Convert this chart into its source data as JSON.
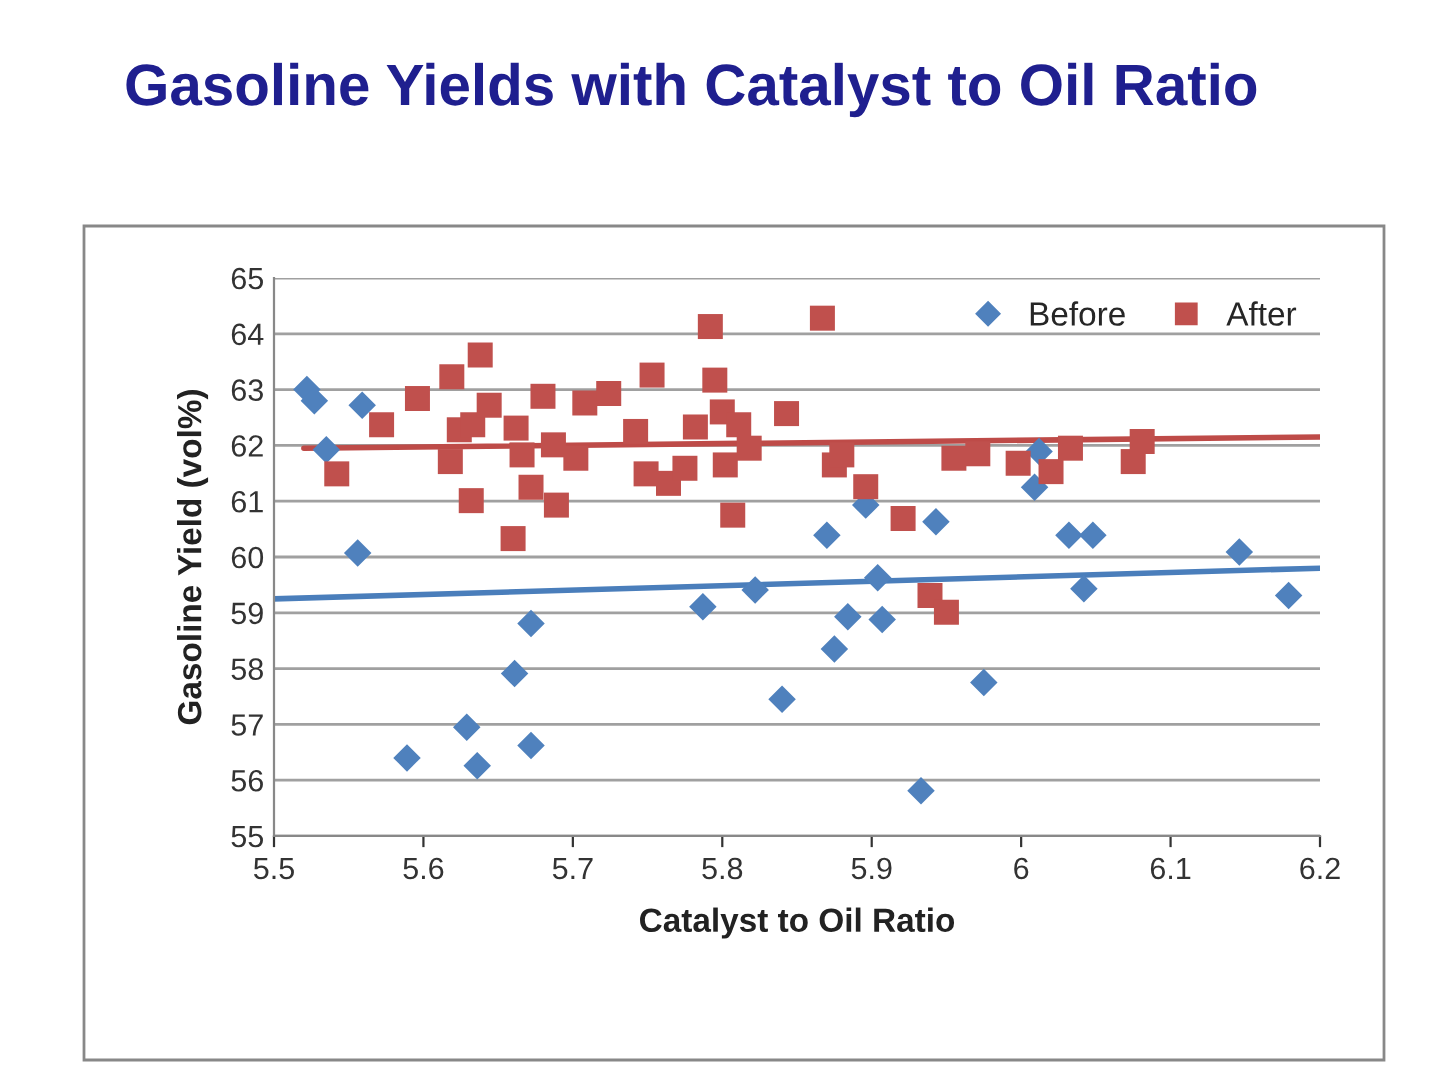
{
  "chart_data": {
    "type": "scatter",
    "title": "Gasoline Yields with Catalyst to Oil Ratio",
    "xlabel": "Catalyst to Oil Ratio",
    "ylabel": "Gasoline Yield (vol%)",
    "xlim": [
      5.5,
      6.2
    ],
    "xticks": [
      5.5,
      5.6,
      5.7,
      5.8,
      5.9,
      6,
      6.1,
      6.2
    ],
    "ylim": [
      55,
      65
    ],
    "yticks": [
      55,
      56,
      57,
      58,
      59,
      60,
      61,
      62,
      63,
      64,
      65
    ],
    "grid": "y",
    "legend": "top right",
    "series": [
      {
        "name": "Before",
        "marker": "diamond",
        "color": "#4f81bd",
        "x": [
          5.522,
          5.527,
          5.535,
          5.559,
          5.556,
          5.589,
          5.629,
          5.636,
          5.661,
          5.672,
          5.672,
          5.787,
          5.822,
          5.84,
          5.87,
          5.875,
          5.884,
          5.896,
          5.904,
          5.907,
          5.933,
          5.943,
          5.975,
          6.012,
          6.009,
          6.032,
          6.048,
          6.042,
          6.146,
          6.179
        ],
        "values": [
          63.0,
          62.8,
          61.92,
          62.72,
          60.07,
          56.4,
          56.95,
          56.26,
          57.91,
          58.81,
          56.62,
          59.11,
          59.41,
          57.45,
          60.39,
          58.35,
          58.93,
          60.93,
          59.63,
          58.88,
          55.81,
          60.63,
          57.75,
          61.89,
          61.25,
          60.39,
          60.39,
          59.43,
          60.09,
          59.31
        ]
      },
      {
        "name": "After",
        "marker": "square",
        "color": "#c0504d",
        "x": [
          5.542,
          5.572,
          5.596,
          5.619,
          5.618,
          5.624,
          5.633,
          5.638,
          5.644,
          5.632,
          5.66,
          5.662,
          5.666,
          5.672,
          5.68,
          5.687,
          5.689,
          5.702,
          5.708,
          5.724,
          5.742,
          5.753,
          5.749,
          5.764,
          5.775,
          5.782,
          5.792,
          5.795,
          5.8,
          5.802,
          5.811,
          5.818,
          5.807,
          5.843,
          5.867,
          5.875,
          5.88,
          5.896,
          5.921,
          5.939,
          5.95,
          5.955,
          5.971,
          5.998,
          6.02,
          6.033,
          6.075,
          6.081
        ],
        "values": [
          61.49,
          62.37,
          62.84,
          63.23,
          61.71,
          62.28,
          62.37,
          63.62,
          62.72,
          61.01,
          60.33,
          62.31,
          61.83,
          61.25,
          62.88,
          62.01,
          60.93,
          61.77,
          62.76,
          62.93,
          62.25,
          63.26,
          61.49,
          61.32,
          61.59,
          62.33,
          64.13,
          63.17,
          62.6,
          61.65,
          62.37,
          61.95,
          60.75,
          62.57,
          64.28,
          61.65,
          61.83,
          61.26,
          60.69,
          59.31,
          59.01,
          61.77,
          61.85,
          61.68,
          61.53,
          61.95,
          61.71,
          62.07
        ]
      },
      {
        "type": "line",
        "color": "#4a7ebb",
        "x": [
          5.5,
          6.2
        ],
        "values": [
          59.25,
          59.8
        ]
      },
      {
        "type": "line",
        "color": "#be4b48",
        "x": [
          5.52,
          6.2
        ],
        "values": [
          61.95,
          62.15
        ]
      }
    ]
  }
}
